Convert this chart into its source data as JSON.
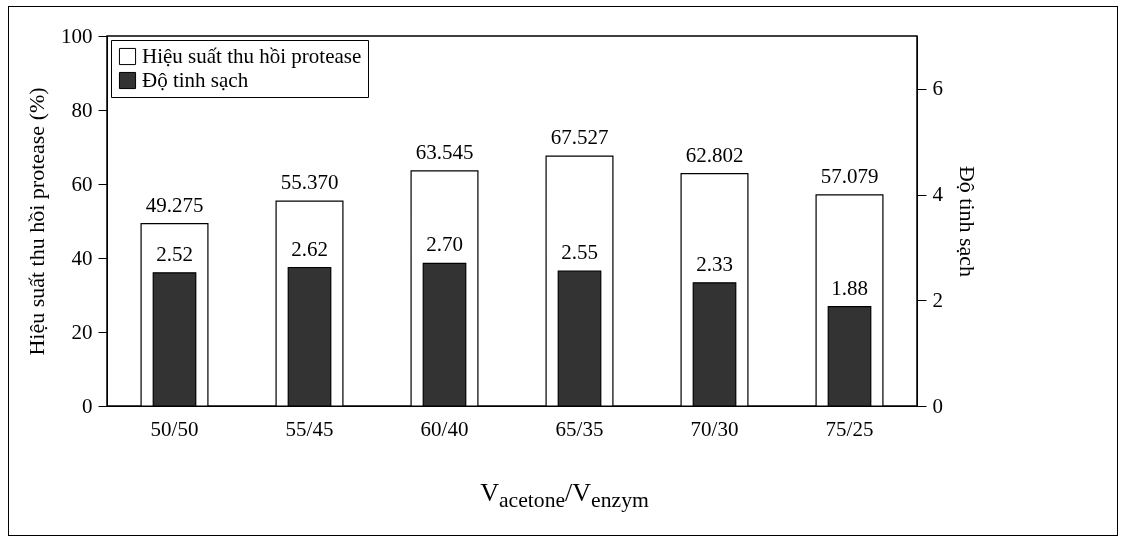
{
  "chart_data": {
    "type": "bar",
    "xlabel": "V$_{acetone}$/V$_{enzym}$",
    "ylabel": "Hiệu suất thu hồi protease (%)",
    "y2label": "Độ tinh sạch",
    "categories": [
      "50/50",
      "55/45",
      "60/40",
      "65/35",
      "70/30",
      "75/25"
    ],
    "series": [
      {
        "name": "Hiệu suất thu hồi protease",
        "color": "#ffffff",
        "values": [
          49.275,
          55.37,
          63.545,
          67.527,
          62.802,
          57.079
        ],
        "value_labels": [
          "49.275",
          "55.370",
          "63.545",
          "67.527",
          "62.802",
          "57.079"
        ]
      },
      {
        "name": "Độ tinh sạch",
        "color": "#333333",
        "axis": "y2",
        "values": [
          2.52,
          2.62,
          2.7,
          2.55,
          2.33,
          1.88
        ],
        "value_labels": [
          "2.52",
          "2.62",
          "2.70",
          "2.55",
          "2.33",
          "1.88"
        ]
      }
    ],
    "ylim": [
      0,
      100
    ],
    "yticks": [
      0,
      20,
      40,
      60,
      80,
      100
    ],
    "y2lim": [
      0,
      7
    ],
    "y2ticks": [
      0,
      2,
      4,
      6
    ],
    "legend": "top left",
    "grid": false
  }
}
